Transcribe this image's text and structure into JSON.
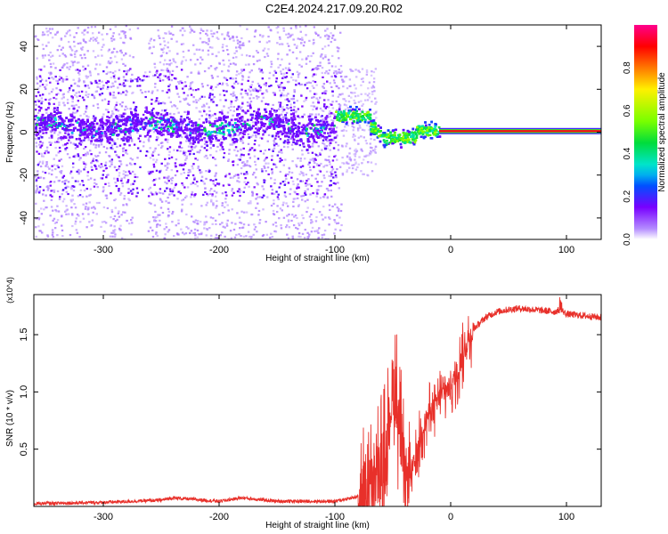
{
  "title": "C2E4.2024.217.09.20.R02",
  "chart_data": [
    {
      "type": "heatmap",
      "xlabel": "Height of straight line (km)",
      "ylabel": "Frequency (Hz)",
      "xlim": [
        -360,
        130
      ],
      "ylim": [
        -50,
        50
      ],
      "x_ticks": [
        -300,
        -200,
        -100,
        0,
        100
      ],
      "y_ticks": [
        -40,
        -20,
        0,
        20,
        40
      ],
      "colorbar": {
        "label": "Normalized spectral amplitude",
        "range": [
          0,
          1
        ],
        "ticks": [
          0.0,
          0.2,
          0.4,
          0.6,
          0.8
        ]
      },
      "description_points": [
        {
          "x": -300,
          "peak_freq": 3,
          "amplitude": 0.15
        },
        {
          "x": -250,
          "peak_freq": 7,
          "amplitude": 0.35
        },
        {
          "x": -200,
          "peak_freq": 7,
          "amplitude": 0.35
        },
        {
          "x": -150,
          "peak_freq": 4,
          "amplitude": 0.15
        },
        {
          "x": -85,
          "peak_freq": 8,
          "amplitude": 0.5
        },
        {
          "x": -60,
          "peak_freq": 0,
          "amplitude": 0.45
        },
        {
          "x": -40,
          "peak_freq": -2,
          "amplitude": 0.5
        },
        {
          "x": 0,
          "peak_freq": 1,
          "amplitude": 0.7
        },
        {
          "x": 100,
          "peak_freq": 0.5,
          "amplitude": 1.0
        }
      ]
    },
    {
      "type": "line",
      "xlabel": "Height of straight line (km)",
      "ylabel": "SNR (10 * v/v)",
      "y_multiplier": "(x10^4)",
      "xlim": [
        -360,
        130
      ],
      "ylim": [
        0,
        1.85
      ],
      "x_ticks": [
        -300,
        -200,
        -100,
        0,
        100
      ],
      "y_ticks": [
        0.5,
        1.0,
        1.5
      ],
      "series": [
        {
          "color": "#e8302a",
          "x": [
            -360,
            -300,
            -250,
            -240,
            -200,
            -180,
            -150,
            -100,
            -80,
            -65,
            -55,
            -50,
            -45,
            -40,
            -35,
            -30,
            -25,
            -20,
            -15,
            -10,
            -5,
            0,
            5,
            10,
            15,
            20,
            25,
            30,
            40,
            50,
            60,
            70,
            80,
            90,
            95,
            100,
            110,
            120,
            130
          ],
          "y": [
            0.01,
            0.02,
            0.04,
            0.06,
            0.03,
            0.06,
            0.03,
            0.03,
            0.07,
            0.2,
            0.5,
            1.1,
            0.8,
            0.2,
            0.3,
            0.4,
            0.65,
            0.8,
            0.85,
            0.95,
            1.0,
            1.05,
            1.15,
            1.3,
            1.45,
            1.55,
            1.6,
            1.65,
            1.7,
            1.72,
            1.73,
            1.72,
            1.71,
            1.7,
            1.72,
            1.68,
            1.67,
            1.66,
            1.65
          ]
        }
      ]
    }
  ]
}
